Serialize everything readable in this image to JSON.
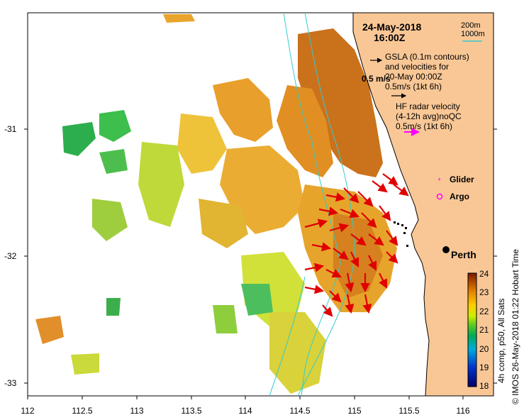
{
  "header": {
    "date": "24-May-2018",
    "time": "16:00Z"
  },
  "legend": {
    "depth_200": "200m",
    "depth_1000": "1000m",
    "gsla_line1": "GSLA (0.1m contours)",
    "gsla_line2": "and velocities for",
    "gsla_line3": "20-May 00:00Z",
    "gsla_scale": "0.5m/s (1kt 6h)",
    "arrow_scale_label": "0.5 m/s",
    "hf_line1": "HF radar velocity",
    "hf_line2": "(4-12h avg)noQC",
    "hf_scale": "0.5m/s (1kt 6h)",
    "glider": "Glider",
    "argo": "Argo",
    "city": "Perth"
  },
  "x_axis": {
    "ticks": [
      "112",
      "112.5",
      "113",
      "113.5",
      "114",
      "114.5",
      "115",
      "115.5",
      "116"
    ]
  },
  "y_axis": {
    "ticks": [
      "-31",
      "-32",
      "-33"
    ]
  },
  "colorbar": {
    "ticks": [
      "24",
      "23",
      "22",
      "21",
      "20",
      "19",
      "18"
    ],
    "label": "4h comp, p50, All Sats"
  },
  "credit": "© IMOS 26-May-2018 01:22 Hobart Time",
  "colors": {
    "land": "#f9c796",
    "hf_arrow": "#e00000",
    "isobath": "#33cccc",
    "argo": "#ff00ff"
  }
}
